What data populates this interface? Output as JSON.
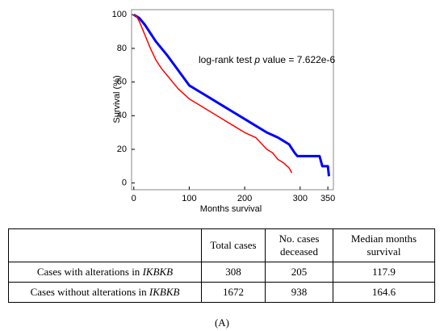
{
  "chart_data": {
    "type": "line",
    "ylabel": "Survival (%)",
    "xlabel": "Months survival",
    "annotation": {
      "prefix": "log-rank test ",
      "italic": "p",
      "suffix": " value = 7.622e-6"
    },
    "xlim": [
      -4,
      360
    ],
    "ylim": [
      -4,
      103
    ],
    "xticks": [
      0,
      100,
      200,
      300,
      350
    ],
    "yticks": [
      0,
      20,
      40,
      60,
      80,
      100
    ],
    "series": [
      {
        "color": "#0000ff",
        "x": [
          0,
          5,
          10,
          20,
          30,
          40,
          50,
          60,
          80,
          100,
          120,
          140,
          160,
          180,
          200,
          220,
          240,
          260,
          270,
          280,
          290,
          295,
          335,
          340,
          350,
          352
        ],
        "values": [
          100,
          99,
          98,
          94,
          89,
          84,
          80,
          76,
          67,
          58,
          54,
          50,
          46,
          42,
          38,
          34,
          30,
          27,
          25,
          23,
          18,
          16,
          16,
          10,
          10,
          4
        ]
      },
      {
        "color": "#ff0000",
        "x": [
          0,
          5,
          10,
          20,
          30,
          40,
          50,
          60,
          80,
          100,
          120,
          140,
          160,
          180,
          200,
          220,
          240,
          250,
          260,
          270,
          280,
          285
        ],
        "values": [
          100,
          99,
          96,
          88,
          80,
          73,
          68,
          64,
          56,
          50,
          46,
          42,
          38,
          34,
          30,
          27,
          20,
          18,
          14,
          12,
          9,
          6
        ]
      }
    ]
  },
  "table": {
    "headers": [
      "Total cases",
      "No. cases deceased",
      "Median months survival"
    ],
    "rows": [
      {
        "label": "Cases with alterations in",
        "gene": "IKBKB",
        "cells": [
          "308",
          "205",
          "117.9"
        ]
      },
      {
        "label": "Cases without alterations in",
        "gene": "IKBKB",
        "cells": [
          "1672",
          "938",
          "164.6"
        ]
      }
    ]
  },
  "caption": "(A)"
}
